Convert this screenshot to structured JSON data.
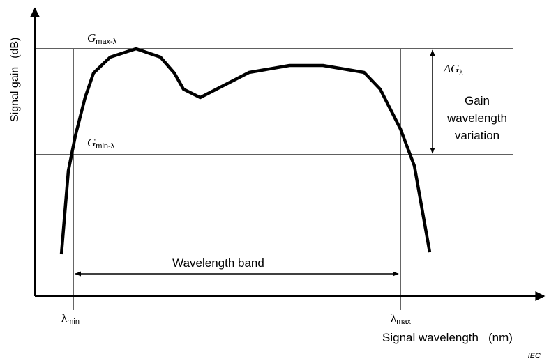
{
  "axes": {
    "y_label": {
      "name": "Signal gain",
      "unit": "(dB)"
    },
    "x_label": {
      "name": "Signal wavelength",
      "unit": "(nm)"
    }
  },
  "levels": {
    "max": {
      "symbol": "G",
      "sub": "max-λ"
    },
    "min": {
      "symbol": "G",
      "sub": "min-λ"
    }
  },
  "delta": {
    "symbol": "ΔG",
    "sub": "λ",
    "lines": [
      "Gain",
      "wavelength",
      "variation"
    ]
  },
  "band": {
    "label": "Wavelength band",
    "min": {
      "symbol": "λ",
      "sub": "min"
    },
    "max": {
      "symbol": "λ",
      "sub": "max"
    }
  },
  "credit": "IEC"
}
